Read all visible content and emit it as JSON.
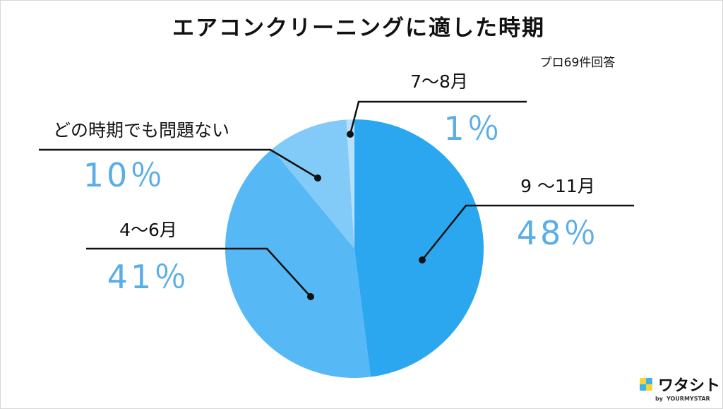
{
  "chart_data": {
    "type": "pie",
    "title": "エアコンクリーニングに適した時期",
    "note": "プロ69件回答",
    "slices": [
      {
        "label": "9 ～11月",
        "value": 48,
        "value_label": "48％",
        "color": "#2aa7ef"
      },
      {
        "label": "4～6月",
        "value": 41,
        "value_label": "41％",
        "color": "#56b8f5"
      },
      {
        "label": "どの時期でも問題ない",
        "value": 10,
        "value_label": "10％",
        "color": "#82cbf8"
      },
      {
        "label": "7～8月",
        "value": 1,
        "value_label": "1％",
        "color": "#b9e0fb"
      }
    ],
    "percent_text_color": "#5aaee8"
  },
  "branding": {
    "logo_text": "ワタシト",
    "byline": "by",
    "company": "YOURMYSTAR",
    "logo_colors": [
      "#f5d33a",
      "#3cb4e6"
    ]
  }
}
